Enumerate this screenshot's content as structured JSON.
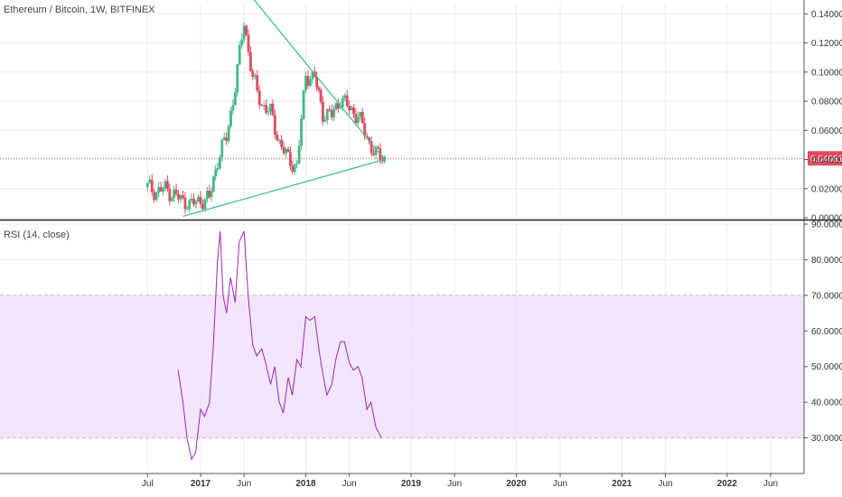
{
  "chart_data": [
    {
      "type": "candlestick",
      "title": "Ethereum / Bitcoin, 1W, BITFINEX",
      "y_ticks": [
        "0.000000",
        "0.020000",
        "0.040000",
        "0.060000",
        "0.080000",
        "0.100000",
        "0.120000",
        "0.140000"
      ],
      "y_tick_values": [
        0,
        0.02,
        0.04,
        0.06,
        0.08,
        0.1,
        0.12,
        0.14
      ],
      "ylim": [
        0.0,
        0.147
      ],
      "current_price": {
        "label": "0.040815",
        "value": 0.040815,
        "color": "#e04a5f"
      },
      "up_color": "#43b883",
      "down_color": "#e04a5f",
      "trendline_color": "#3fbf95",
      "trendlines": [
        {
          "name": "upper",
          "from": [
            "2017-06",
            0.158
          ],
          "to": [
            "2018-10",
            0.04
          ]
        },
        {
          "name": "lower",
          "from": [
            "2016-11",
            0.001
          ],
          "to": [
            "2018-10",
            0.04
          ]
        }
      ],
      "weekly_close_approx": [
        [
          "2016-07",
          0.021
        ],
        [
          "2016-08",
          0.018
        ],
        [
          "2016-09",
          0.02
        ],
        [
          "2016-10",
          0.016
        ],
        [
          "2016-11",
          0.011
        ],
        [
          "2016-12",
          0.009
        ],
        [
          "2017-01",
          0.012
        ],
        [
          "2017-02",
          0.013
        ],
        [
          "2017-03",
          0.04
        ],
        [
          "2017-04",
          0.055
        ],
        [
          "2017-05",
          0.09
        ],
        [
          "2017-06",
          0.135
        ],
        [
          "2017-07",
          0.095
        ],
        [
          "2017-08",
          0.078
        ],
        [
          "2017-09",
          0.072
        ],
        [
          "2017-10",
          0.052
        ],
        [
          "2017-11",
          0.04
        ],
        [
          "2017-12",
          0.035
        ],
        [
          "2018-01",
          0.098
        ],
        [
          "2018-02",
          0.096
        ],
        [
          "2018-03",
          0.072
        ],
        [
          "2018-04",
          0.07
        ],
        [
          "2018-05",
          0.082
        ],
        [
          "2018-06",
          0.075
        ],
        [
          "2018-07",
          0.07
        ],
        [
          "2018-08",
          0.055
        ],
        [
          "2018-09",
          0.043
        ],
        [
          "2018-10",
          0.041
        ]
      ]
    },
    {
      "type": "line",
      "title": "RSI (14, close)",
      "y_ticks": [
        "30.0000",
        "40.0000",
        "50.0000",
        "60.0000",
        "70.0000",
        "80.0000",
        "90.0000"
      ],
      "y_tick_values": [
        30,
        40,
        50,
        60,
        70,
        80,
        90
      ],
      "ylim": [
        20,
        90
      ],
      "band": [
        30,
        70
      ],
      "band_color": "#efdcfd",
      "line_color": "#9c27b0",
      "series": [
        {
          "points": [
            [
              "2016-10-15",
              49
            ],
            [
              "2016-11-01",
              40
            ],
            [
              "2016-11-15",
              30
            ],
            [
              "2016-12-01",
              24
            ],
            [
              "2016-12-15",
              26
            ],
            [
              "2017-01-01",
              38
            ],
            [
              "2017-01-15",
              36
            ],
            [
              "2017-02-01",
              40
            ],
            [
              "2017-02-15",
              57
            ],
            [
              "2017-03-01",
              80
            ],
            [
              "2017-03-10",
              88
            ],
            [
              "2017-03-20",
              70
            ],
            [
              "2017-04-01",
              65
            ],
            [
              "2017-04-15",
              75
            ],
            [
              "2017-05-01",
              68
            ],
            [
              "2017-05-15",
              85
            ],
            [
              "2017-06-01",
              88
            ],
            [
              "2017-06-15",
              70
            ],
            [
              "2017-07-01",
              56
            ],
            [
              "2017-07-15",
              53
            ],
            [
              "2017-08-01",
              55
            ],
            [
              "2017-08-15",
              51
            ],
            [
              "2017-09-01",
              45
            ],
            [
              "2017-09-15",
              50
            ],
            [
              "2017-10-01",
              40
            ],
            [
              "2017-10-15",
              37
            ],
            [
              "2017-11-01",
              47
            ],
            [
              "2017-11-15",
              42
            ],
            [
              "2017-12-01",
              52
            ],
            [
              "2017-12-15",
              50
            ],
            [
              "2018-01-01",
              64
            ],
            [
              "2018-01-15",
              63
            ],
            [
              "2018-02-01",
              64
            ],
            [
              "2018-02-15",
              55
            ],
            [
              "2018-03-01",
              48
            ],
            [
              "2018-03-15",
              42
            ],
            [
              "2018-04-01",
              45
            ],
            [
              "2018-04-15",
              52
            ],
            [
              "2018-05-01",
              57
            ],
            [
              "2018-05-15",
              57
            ],
            [
              "2018-06-01",
              51
            ],
            [
              "2018-06-15",
              49
            ],
            [
              "2018-07-01",
              50
            ],
            [
              "2018-07-15",
              47
            ],
            [
              "2018-08-01",
              38
            ],
            [
              "2018-08-15",
              40
            ],
            [
              "2018-09-01",
              33
            ],
            [
              "2018-09-20",
              30
            ]
          ]
        }
      ]
    }
  ],
  "x_axis": {
    "ticks": [
      {
        "label": "Jul",
        "date": "2016-07-01",
        "bold": false
      },
      {
        "label": "2017",
        "date": "2017-01-01",
        "bold": true
      },
      {
        "label": "Jun",
        "date": "2017-06-01",
        "bold": false
      },
      {
        "label": "2018",
        "date": "2018-01-01",
        "bold": true
      },
      {
        "label": "Jun",
        "date": "2018-06-01",
        "bold": false
      },
      {
        "label": "2019",
        "date": "2019-01-01",
        "bold": true
      },
      {
        "label": "Jun",
        "date": "2019-06-01",
        "bold": false
      },
      {
        "label": "2020",
        "date": "2020-01-01",
        "bold": true
      },
      {
        "label": "Jun",
        "date": "2020-06-01",
        "bold": false
      },
      {
        "label": "2021",
        "date": "2021-01-01",
        "bold": true
      },
      {
        "label": "Jun",
        "date": "2021-06-01",
        "bold": false
      },
      {
        "label": "2022",
        "date": "2022-01-01",
        "bold": true
      },
      {
        "label": "Jun",
        "date": "2022-06-01",
        "bold": false
      }
    ]
  }
}
